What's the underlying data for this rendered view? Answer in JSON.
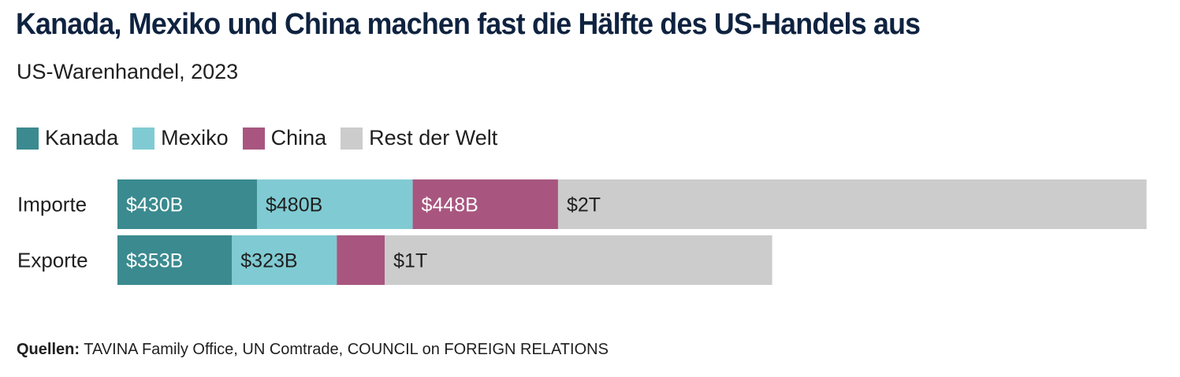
{
  "title": "Kanada, Mexiko und China machen fast die Hälfte des US-Handels aus",
  "subtitle": "US-Warenhandel, 2023",
  "source": {
    "label": "Quellen:",
    "text": "TAVINA Family Office, UN Comtrade, COUNCIL on FOREIGN RELATIONS"
  },
  "chart_data": {
    "type": "bar",
    "orientation": "horizontal",
    "stacked": true,
    "categories": [
      "Importe",
      "Exporte"
    ],
    "series": [
      {
        "name": "Kanada",
        "values": [
          430,
          353
        ],
        "labels": [
          "$430B",
          "$353B"
        ],
        "color": "#3a8a8f",
        "label_color": "#ffffff"
      },
      {
        "name": "Mexiko",
        "values": [
          480,
          323
        ],
        "labels": [
          "$480B",
          "$323B"
        ],
        "color": "#80cbd3",
        "label_color": "#1f1f1f"
      },
      {
        "name": "China",
        "values": [
          448,
          148
        ],
        "labels": [
          "$448B",
          ""
        ],
        "color": "#a8567f",
        "label_color": "#ffffff"
      },
      {
        "name": "Rest der Welt",
        "values": [
          1814,
          1194
        ],
        "labels": [
          "$2T",
          "$1T"
        ],
        "color": "#cccccc",
        "label_color": "#1f1f1f"
      }
    ],
    "unit": "Mrd. USD",
    "legend": "top-left",
    "grid": false
  }
}
